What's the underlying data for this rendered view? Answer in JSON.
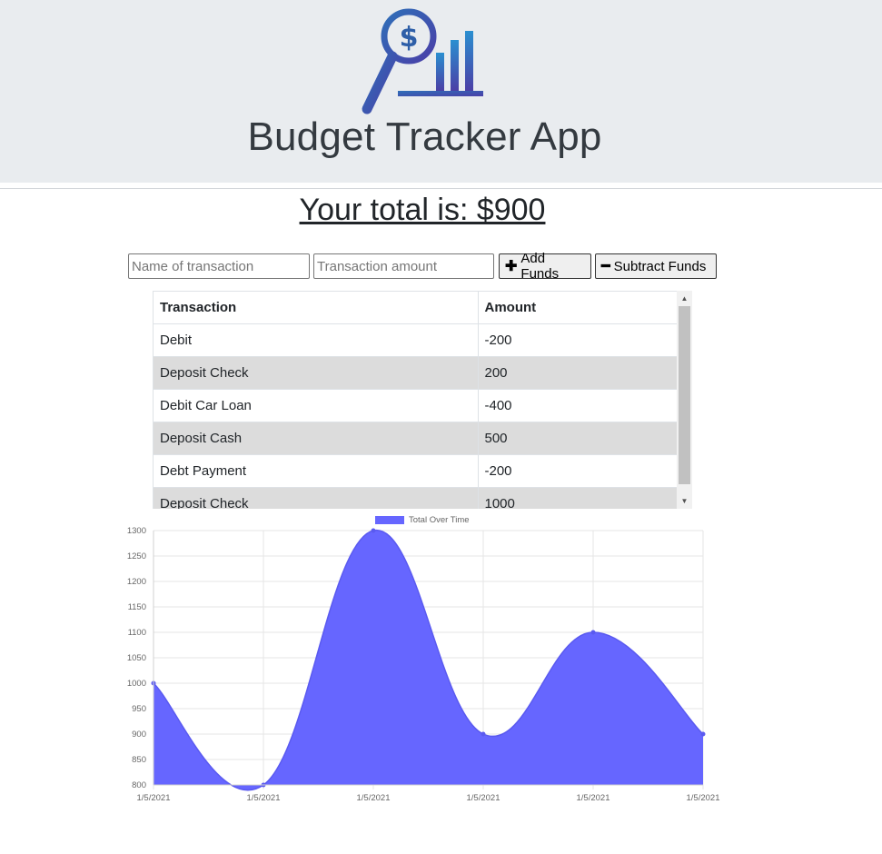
{
  "header": {
    "title": "Budget Tracker App",
    "logo_icon": "budget-magnifier-chart-logo"
  },
  "total": {
    "label": "Your total is: $900"
  },
  "form": {
    "name_placeholder": "Name of transaction",
    "amount_placeholder": "Transaction amount",
    "add_label": "Add Funds",
    "subtract_label": "Subtract Funds"
  },
  "table": {
    "headers": [
      "Transaction",
      "Amount"
    ],
    "rows": [
      {
        "name": "Debit",
        "amount": "-200"
      },
      {
        "name": "Deposit Check",
        "amount": "200"
      },
      {
        "name": "Debit Car Loan",
        "amount": "-400"
      },
      {
        "name": "Deposit Cash",
        "amount": "500"
      },
      {
        "name": "Debt Payment",
        "amount": "-200"
      },
      {
        "name": "Deposit Check",
        "amount": "1000"
      }
    ]
  },
  "colors": {
    "series_fill": "#6666ff",
    "header_bg": "#e9ecef",
    "row_alt": "#dcdcdc"
  },
  "chart_data": {
    "type": "area",
    "x": [
      "1/5/2021",
      "1/5/2021",
      "1/5/2021",
      "1/5/2021",
      "1/5/2021",
      "1/5/2021"
    ],
    "series": [
      {
        "name": "Total Over Time",
        "values": [
          1000,
          800,
          1300,
          900,
          1100,
          900
        ]
      }
    ],
    "ylim": [
      800,
      1300
    ],
    "yticks": [
      800,
      850,
      900,
      950,
      1000,
      1050,
      1100,
      1150,
      1200,
      1250,
      1300
    ],
    "grid": true,
    "legend": "top-center",
    "title": "",
    "xlabel": "",
    "ylabel": ""
  }
}
